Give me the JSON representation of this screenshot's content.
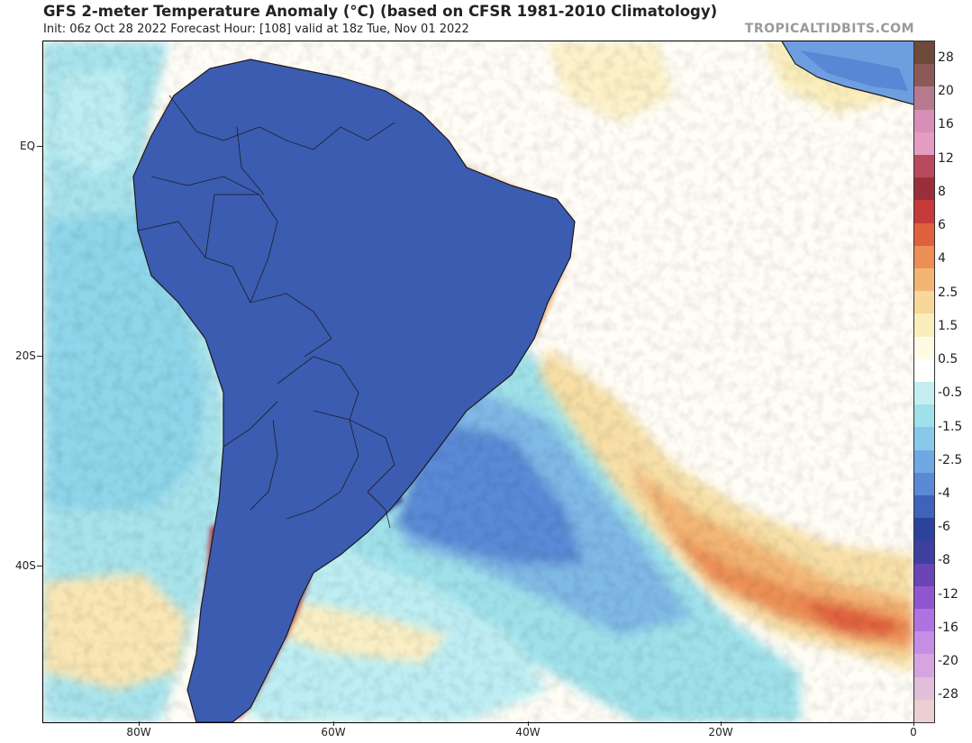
{
  "header": {
    "title": "GFS 2-meter Temperature Anomaly (°C) (based on CFSR 1981-2010 Climatology)",
    "subtitle": "Init: 06z Oct 28 2022   Forecast Hour: [108]   valid at 18z Tue, Nov 01 2022",
    "brand": "TROPICALTIDBITS.COM"
  },
  "map": {
    "region": "South America",
    "lat_labels": [
      "EQ",
      "20S",
      "40S"
    ],
    "lon_labels": [
      "80W",
      "60W",
      "40W",
      "20W",
      "0"
    ]
  },
  "colorbar": {
    "labels": [
      "28",
      "20",
      "16",
      "12",
      "8",
      "6",
      "4",
      "2.5",
      "1.5",
      "0.5",
      "-0.5",
      "-1.5",
      "-2.5",
      "-4",
      "-6",
      "-8",
      "-12",
      "-16",
      "-20",
      "-28"
    ],
    "colors": [
      "#6e4a3a",
      "#8c5a56",
      "#b57a8e",
      "#d78fb8",
      "#e49cc3",
      "#b94a5e",
      "#9a2f3c",
      "#c63a3a",
      "#e0603e",
      "#ec8f55",
      "#f3b574",
      "#f7d79a",
      "#fbeebd",
      "#fdfbe4",
      "#ffffff",
      "#c6eef1",
      "#9fe1ea",
      "#88c9ea",
      "#6fa8e3",
      "#5a89d6",
      "#3f63bb",
      "#2d429a",
      "#3f3fa0",
      "#6a45b8",
      "#8f56d0",
      "#b072e0",
      "#c58de4",
      "#d6a5df",
      "#e2bed8",
      "#eccfd0"
    ]
  }
}
